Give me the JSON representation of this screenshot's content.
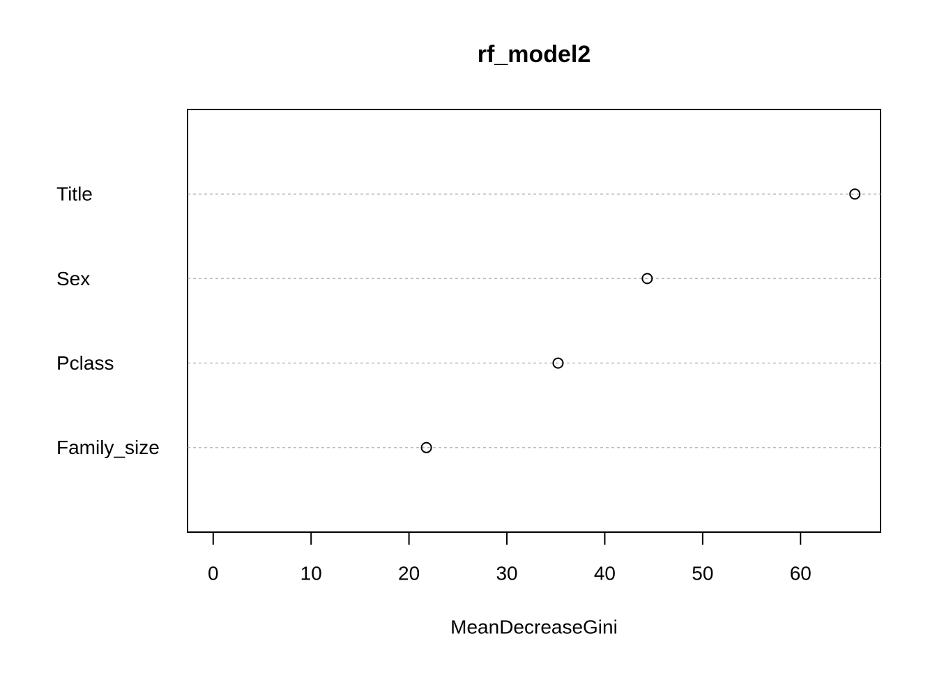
{
  "chart_data": {
    "type": "dot",
    "title": "rf_model2",
    "x_label": "MeanDecreaseGini",
    "categories": [
      "Title",
      "Sex",
      "Pclass",
      "Family_size"
    ],
    "values": [
      65.55,
      44.34,
      35.23,
      21.78
    ],
    "color": "#000000",
    "xlim": [
      -2.62,
      68.17
    ],
    "xticks": [
      0,
      10,
      20,
      30,
      40,
      50,
      60
    ],
    "grid": true
  }
}
